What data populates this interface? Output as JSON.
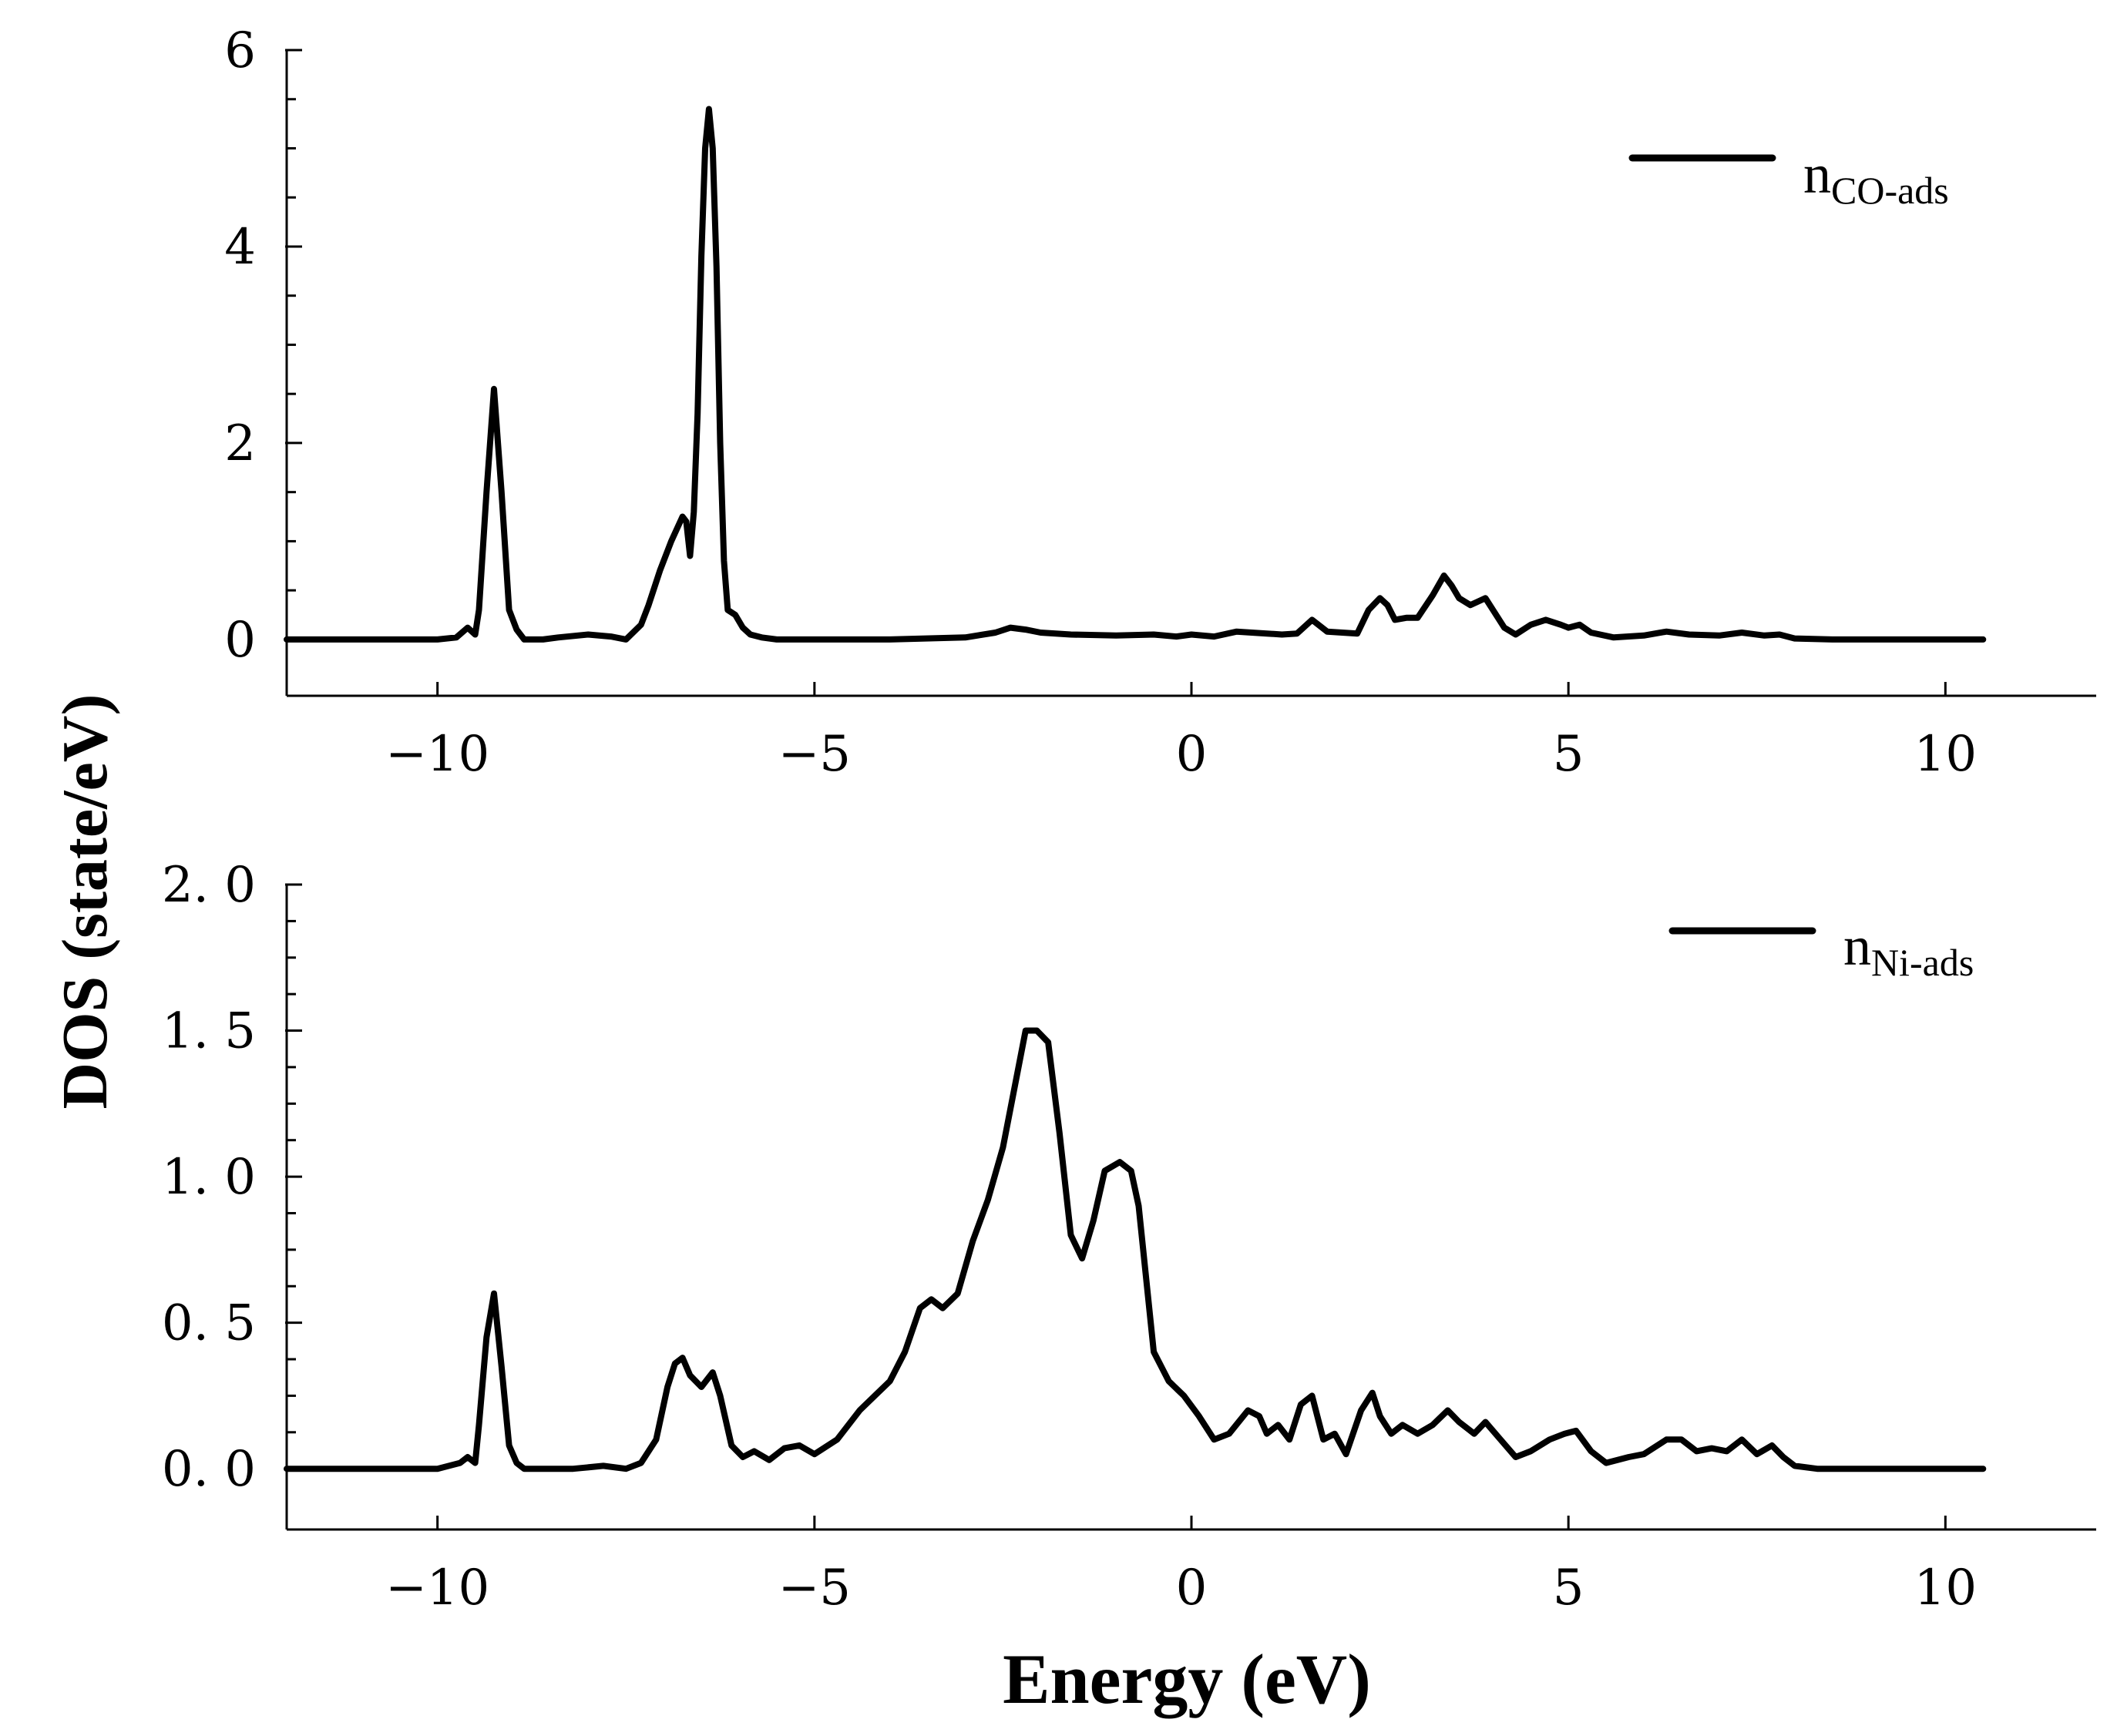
{
  "chart_data": {
    "type": "line",
    "xlabel": "Energy (eV)",
    "ylabel": "DOS (state/eV)",
    "panels": [
      {
        "xlim": [
          -12,
          12
        ],
        "ylim": [
          -0.55,
          6
        ],
        "xticks": [
          -10,
          -5,
          0,
          5,
          10
        ],
        "xtick_labels": [
          "−10",
          "−5",
          "0",
          "5",
          "10"
        ],
        "yticks": [
          0,
          2,
          4,
          6
        ],
        "ytick_labels": [
          "0",
          "2",
          "4",
          "6"
        ],
        "legend": {
          "base": "n",
          "sub": "CO-ads"
        },
        "series": [
          {
            "name": "nCO-ads",
            "x": [
              -12,
              -10.0,
              -9.75,
              -9.6,
              -9.5,
              -9.45,
              -9.35,
              -9.25,
              -9.15,
              -9.05,
              -8.95,
              -8.85,
              -8.75,
              -8.6,
              -8.4,
              -8.0,
              -7.7,
              -7.5,
              -7.3,
              -7.2,
              -7.05,
              -6.9,
              -6.75,
              -6.7,
              -6.65,
              -6.6,
              -6.55,
              -6.5,
              -6.45,
              -6.4,
              -6.35,
              -6.3,
              -6.25,
              -6.2,
              -6.15,
              -6.05,
              -5.95,
              -5.85,
              -5.7,
              -5.5,
              -5.0,
              -4.0,
              -3.0,
              -2.6,
              -2.4,
              -2.2,
              -2.0,
              -1.6,
              -1.0,
              -0.5,
              -0.2,
              0.0,
              0.3,
              0.6,
              0.8,
              1.0,
              1.2,
              1.4,
              1.6,
              1.8,
              2.0,
              2.2,
              2.35,
              2.5,
              2.6,
              2.7,
              2.85,
              3.0,
              3.2,
              3.35,
              3.45,
              3.55,
              3.7,
              3.9,
              4.0,
              4.15,
              4.3,
              4.5,
              4.7,
              4.9,
              5.0,
              5.15,
              5.3,
              5.6,
              6.0,
              6.3,
              6.6,
              7.0,
              7.3,
              7.6,
              7.8,
              8.0,
              8.5,
              10.5
            ],
            "y": [
              0.0,
              0.0,
              0.02,
              0.12,
              0.05,
              0.3,
              1.5,
              2.55,
              1.5,
              0.3,
              0.1,
              0.0,
              0.0,
              0.0,
              0.02,
              0.05,
              0.03,
              0.0,
              0.15,
              0.35,
              0.7,
              1.0,
              1.25,
              1.2,
              0.85,
              1.3,
              2.3,
              3.9,
              5.0,
              5.4,
              5.0,
              3.8,
              2.0,
              0.8,
              0.3,
              0.25,
              0.12,
              0.05,
              0.02,
              0.0,
              0.0,
              0.0,
              0.02,
              0.07,
              0.12,
              0.1,
              0.07,
              0.05,
              0.04,
              0.05,
              0.03,
              0.05,
              0.03,
              0.08,
              0.07,
              0.06,
              0.05,
              0.06,
              0.2,
              0.08,
              0.07,
              0.06,
              0.3,
              0.42,
              0.35,
              0.2,
              0.22,
              0.22,
              0.45,
              0.65,
              0.55,
              0.42,
              0.35,
              0.42,
              0.3,
              0.12,
              0.05,
              0.15,
              0.2,
              0.15,
              0.12,
              0.15,
              0.07,
              0.02,
              0.04,
              0.08,
              0.05,
              0.04,
              0.07,
              0.04,
              0.05,
              0.01,
              0.0,
              0.0
            ]
          }
        ]
      },
      {
        "xlim": [
          -12,
          12
        ],
        "ylim": [
          -0.2,
          2.0
        ],
        "xticks": [
          -10,
          -5,
          0,
          5,
          10
        ],
        "xtick_labels": [
          "−10",
          "−5",
          "0",
          "5",
          "10"
        ],
        "yticks": [
          0,
          0.5,
          1.0,
          1.5,
          2.0
        ],
        "ytick_labels": [
          "0. 0",
          "0. 5",
          "1. 0",
          "1. 5",
          "2. 0"
        ],
        "legend": {
          "base": "n",
          "sub": "Ni-ads"
        },
        "series": [
          {
            "name": "nNi-ads",
            "x": [
              -12,
              -10.0,
              -9.7,
              -9.6,
              -9.5,
              -9.45,
              -9.35,
              -9.25,
              -9.15,
              -9.05,
              -8.95,
              -8.85,
              -8.6,
              -8.2,
              -7.8,
              -7.5,
              -7.3,
              -7.1,
              -6.95,
              -6.85,
              -6.75,
              -6.65,
              -6.5,
              -6.35,
              -6.25,
              -6.1,
              -5.95,
              -5.8,
              -5.6,
              -5.4,
              -5.2,
              -5.0,
              -4.7,
              -4.4,
              -4.0,
              -3.8,
              -3.6,
              -3.45,
              -3.3,
              -3.1,
              -2.9,
              -2.7,
              -2.5,
              -2.35,
              -2.2,
              -2.05,
              -1.9,
              -1.75,
              -1.6,
              -1.45,
              -1.3,
              -1.15,
              -0.95,
              -0.8,
              -0.7,
              -0.6,
              -0.5,
              -0.3,
              -0.1,
              0.1,
              0.3,
              0.5,
              0.75,
              0.9,
              1.0,
              1.15,
              1.3,
              1.45,
              1.6,
              1.75,
              1.9,
              2.05,
              2.25,
              2.4,
              2.5,
              2.65,
              2.8,
              3.0,
              3.2,
              3.4,
              3.55,
              3.75,
              3.9,
              4.1,
              4.3,
              4.5,
              4.75,
              4.95,
              5.1,
              5.3,
              5.5,
              5.8,
              6.0,
              6.3,
              6.5,
              6.7,
              6.9,
              7.1,
              7.3,
              7.5,
              7.7,
              7.85,
              8.0,
              8.3,
              10.5
            ],
            "y": [
              0.0,
              0.0,
              0.02,
              0.04,
              0.02,
              0.15,
              0.45,
              0.6,
              0.35,
              0.08,
              0.02,
              0.0,
              0.0,
              0.0,
              0.01,
              0.0,
              0.02,
              0.1,
              0.28,
              0.36,
              0.38,
              0.32,
              0.28,
              0.33,
              0.25,
              0.08,
              0.04,
              0.06,
              0.03,
              0.07,
              0.08,
              0.05,
              0.1,
              0.2,
              0.3,
              0.4,
              0.55,
              0.58,
              0.55,
              0.6,
              0.78,
              0.92,
              1.1,
              1.3,
              1.5,
              1.5,
              1.46,
              1.15,
              0.8,
              0.72,
              0.85,
              1.02,
              1.05,
              1.02,
              0.9,
              0.65,
              0.4,
              0.3,
              0.25,
              0.18,
              0.1,
              0.12,
              0.2,
              0.18,
              0.12,
              0.15,
              0.1,
              0.22,
              0.25,
              0.1,
              0.12,
              0.05,
              0.2,
              0.26,
              0.18,
              0.12,
              0.15,
              0.12,
              0.15,
              0.2,
              0.16,
              0.12,
              0.16,
              0.1,
              0.04,
              0.06,
              0.1,
              0.12,
              0.13,
              0.06,
              0.02,
              0.04,
              0.05,
              0.1,
              0.1,
              0.06,
              0.07,
              0.06,
              0.1,
              0.05,
              0.08,
              0.04,
              0.01,
              0.0,
              0.0
            ]
          }
        ]
      }
    ]
  }
}
